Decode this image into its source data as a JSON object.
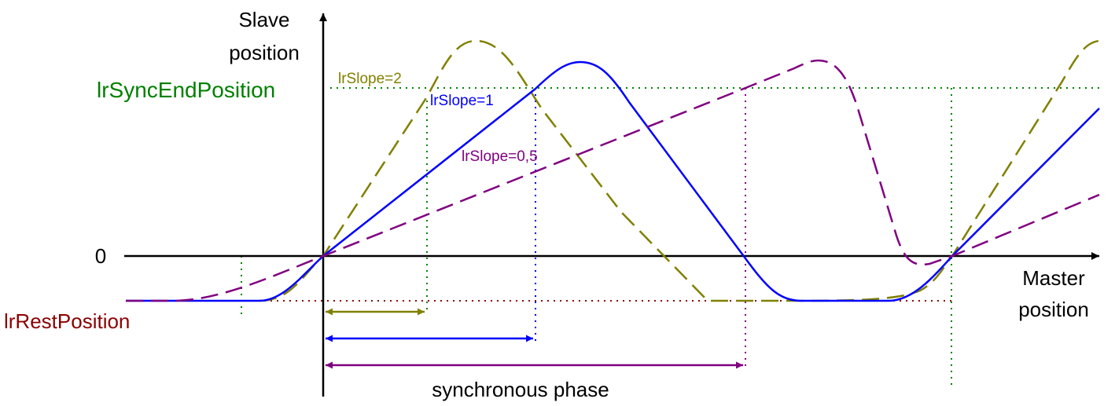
{
  "axes": {
    "y_label_line1": "Slave",
    "y_label_line2": "position",
    "x_label_line1": "Master",
    "x_label_line2": "position",
    "zero_label": "0"
  },
  "levels": {
    "sync_end_label": "lrSyncEndPosition",
    "rest_label": "lrRestPosition"
  },
  "curves": [
    {
      "label": "lrSlope=2",
      "color": "#808000"
    },
    {
      "label": "lrSlope=1",
      "color": "#0000ff"
    },
    {
      "label": "lrSlope=0,5",
      "color": "#800080"
    }
  ],
  "phase_label": "synchronous phase",
  "colors": {
    "axis": "#000000",
    "sync_end": "#008000",
    "rest": "#8b0000",
    "guide_green": "#008000"
  }
}
